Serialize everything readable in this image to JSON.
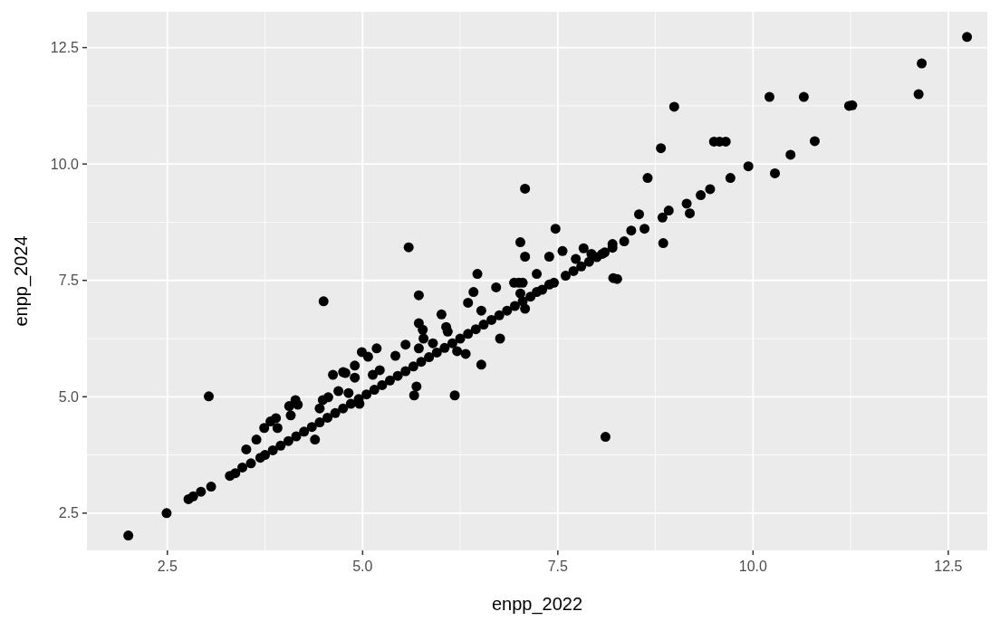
{
  "chart_data": {
    "type": "scatter",
    "xlabel": "enpp_2022",
    "ylabel": "enpp_2024",
    "xlim": [
      1.47,
      13.0
    ],
    "ylim": [
      1.7,
      13.27
    ],
    "xticks": [
      2.5,
      {
        "value": 5,
        "label": "5.0"
      },
      7.5,
      {
        "value": 10,
        "label": "10.0"
      },
      12.5
    ],
    "yticks": [
      2.5,
      {
        "value": 5,
        "label": "5.0"
      },
      7.5,
      {
        "value": 10,
        "label": "10.0"
      },
      12.5
    ],
    "grid": true,
    "marker": "circle",
    "series": [
      {
        "color": "#000000",
        "x": [
          2.0,
          2.49,
          2.77,
          2.83,
          2.93,
          3.06,
          3.03,
          3.3,
          3.37,
          3.46,
          3.57,
          3.51,
          3.64,
          3.69,
          3.74,
          3.82,
          3.89,
          3.91,
          4.06,
          4.14,
          4.17,
          4.08,
          4.39,
          4.45,
          4.49,
          4.56,
          4.62,
          4.75,
          4.69,
          4.5,
          5.59,
          7.08,
          5.72,
          6.47,
          6.42,
          6.35,
          6.52,
          6.71,
          6.94,
          7.05,
          7.02,
          7.08,
          7.39,
          7.23,
          8.21,
          8.11,
          6.76,
          6.52,
          6.18,
          6.32,
          6.21,
          5.66,
          5.69,
          6.01,
          6.07,
          6.09,
          5.72,
          5.77,
          5.78,
          5.9,
          5.72,
          5.55,
          5.42,
          5.18,
          4.99,
          5.07,
          4.9,
          5.22,
          5.13,
          4.9,
          4.78,
          4.82,
          4.96,
          7.02,
          7.08,
          7.47,
          7.39,
          7.56,
          7.73,
          7.83,
          7.93,
          8.07,
          8.2,
          8.26,
          8.35,
          8.44,
          8.61,
          8.54,
          8.65,
          8.82,
          8.85,
          8.84,
          8.92,
          9.15,
          9.19,
          9.33,
          9.45,
          9.71,
          9.94,
          10.28,
          9.5,
          9.57,
          9.65,
          10.21,
          10.65,
          11.23,
          11.27,
          12.12,
          12.16,
          12.74,
          10.79,
          10.48,
          8.99,
          7.0,
          7.23,
          3.75,
          3.85,
          3.95,
          4.05,
          4.15,
          4.25,
          4.35,
          4.45,
          4.55,
          4.65,
          4.75,
          4.85,
          4.95,
          5.05,
          5.15,
          5.25,
          5.35,
          5.45,
          5.55,
          5.65,
          5.75,
          5.85,
          5.95,
          6.05,
          6.15,
          6.25,
          6.35,
          6.45,
          6.55,
          6.65,
          6.75,
          6.85,
          6.95,
          7.05,
          7.15,
          7.3,
          7.45,
          7.6,
          7.7,
          7.8,
          7.9,
          8.0,
          8.1,
          8.2
        ],
        "values": [
          2.02,
          2.5,
          2.8,
          2.86,
          2.96,
          3.07,
          5.01,
          3.3,
          3.36,
          3.48,
          3.57,
          3.87,
          4.08,
          3.69,
          4.33,
          4.47,
          4.54,
          4.33,
          4.8,
          4.93,
          4.83,
          4.6,
          4.08,
          4.75,
          4.93,
          4.99,
          5.47,
          5.53,
          5.12,
          7.05,
          8.21,
          9.47,
          7.18,
          7.64,
          7.25,
          7.02,
          6.85,
          7.35,
          7.45,
          7.45,
          7.22,
          6.89,
          7.41,
          7.64,
          7.55,
          4.14,
          6.25,
          5.69,
          5.03,
          5.92,
          5.98,
          5.03,
          5.22,
          6.77,
          6.5,
          6.4,
          6.58,
          6.44,
          6.25,
          6.15,
          6.04,
          6.12,
          5.88,
          6.04,
          5.96,
          5.86,
          5.67,
          5.57,
          5.47,
          5.41,
          5.51,
          5.08,
          4.85,
          8.32,
          8.01,
          8.61,
          8.01,
          8.13,
          7.96,
          8.19,
          8.07,
          8.07,
          8.28,
          7.53,
          8.34,
          8.57,
          8.61,
          8.92,
          9.7,
          10.34,
          8.3,
          8.85,
          9.0,
          9.15,
          8.94,
          9.33,
          9.46,
          9.7,
          9.95,
          9.8,
          10.48,
          10.48,
          10.48,
          11.44,
          11.44,
          11.25,
          11.26,
          11.5,
          12.16,
          12.73,
          10.49,
          10.2,
          11.23,
          7.45,
          7.25,
          3.75,
          3.85,
          3.95,
          4.05,
          4.15,
          4.25,
          4.35,
          4.45,
          4.55,
          4.65,
          4.75,
          4.85,
          4.95,
          5.05,
          5.15,
          5.25,
          5.35,
          5.45,
          5.55,
          5.65,
          5.75,
          5.85,
          5.95,
          6.05,
          6.15,
          6.25,
          6.35,
          6.45,
          6.55,
          6.65,
          6.75,
          6.85,
          6.95,
          7.05,
          7.15,
          7.3,
          7.45,
          7.6,
          7.7,
          7.8,
          7.9,
          8.0,
          8.1,
          8.2
        ]
      }
    ]
  }
}
